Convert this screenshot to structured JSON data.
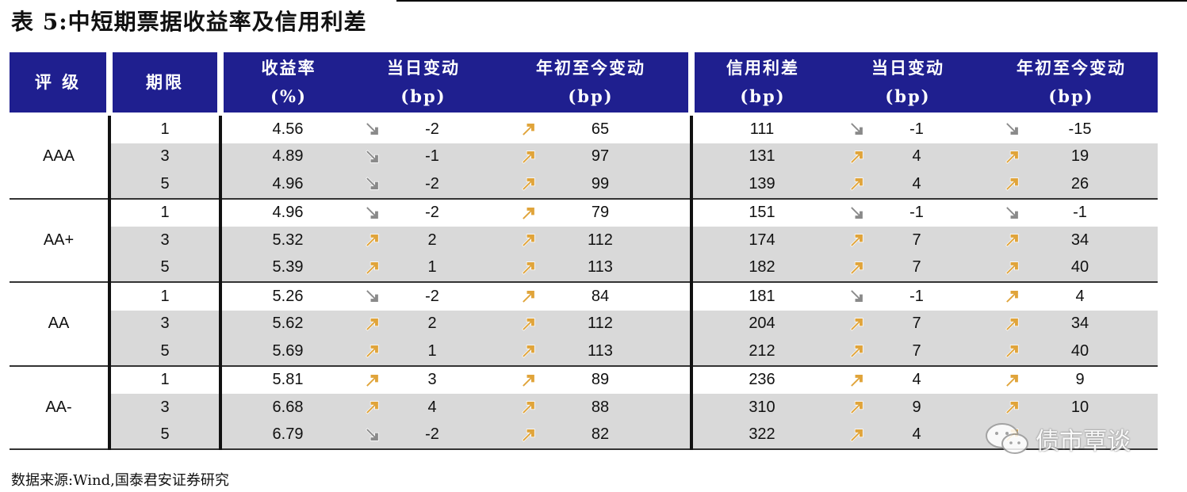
{
  "title": "表 5:中短期票据收益率及信用利差",
  "headers": {
    "rating": "评 级",
    "term": "期限",
    "yield_top": "收益率",
    "yield_bot": "(%)",
    "yield_day_top": "当日变动",
    "yield_day_bot": "(bp)",
    "yield_ytd_top": "年初至今变动",
    "yield_ytd_bot": "(bp)",
    "spread_top": "信用利差",
    "spread_bot": "(bp)",
    "spread_day_top": "当日变动",
    "spread_day_bot": "(bp)",
    "spread_ytd_top": "年初至今变动",
    "spread_ytd_bot": "(bp)"
  },
  "rows": [
    {
      "rating": "AAA",
      "term": "1",
      "yield": "4.56",
      "yday": "-2",
      "yday_dir": "down",
      "yytd": "65",
      "yytd_dir": "up",
      "spread": "111",
      "sday": "-1",
      "sday_dir": "down",
      "sytd": "-15",
      "sytd_dir": "down"
    },
    {
      "rating": "",
      "term": "3",
      "yield": "4.89",
      "yday": "-1",
      "yday_dir": "down",
      "yytd": "97",
      "yytd_dir": "up",
      "spread": "131",
      "sday": "4",
      "sday_dir": "up",
      "sytd": "19",
      "sytd_dir": "up"
    },
    {
      "rating": "",
      "term": "5",
      "yield": "4.96",
      "yday": "-2",
      "yday_dir": "down",
      "yytd": "99",
      "yytd_dir": "up",
      "spread": "139",
      "sday": "4",
      "sday_dir": "up",
      "sytd": "26",
      "sytd_dir": "up"
    },
    {
      "rating": "AA+",
      "term": "1",
      "yield": "4.96",
      "yday": "-2",
      "yday_dir": "down",
      "yytd": "79",
      "yytd_dir": "up",
      "spread": "151",
      "sday": "-1",
      "sday_dir": "down",
      "sytd": "-1",
      "sytd_dir": "down"
    },
    {
      "rating": "",
      "term": "3",
      "yield": "5.32",
      "yday": "2",
      "yday_dir": "up",
      "yytd": "112",
      "yytd_dir": "up",
      "spread": "174",
      "sday": "7",
      "sday_dir": "up",
      "sytd": "34",
      "sytd_dir": "up"
    },
    {
      "rating": "",
      "term": "5",
      "yield": "5.39",
      "yday": "1",
      "yday_dir": "up",
      "yytd": "113",
      "yytd_dir": "up",
      "spread": "182",
      "sday": "7",
      "sday_dir": "up",
      "sytd": "40",
      "sytd_dir": "up"
    },
    {
      "rating": "AA",
      "term": "1",
      "yield": "5.26",
      "yday": "-2",
      "yday_dir": "down",
      "yytd": "84",
      "yytd_dir": "up",
      "spread": "181",
      "sday": "-1",
      "sday_dir": "down",
      "sytd": "4",
      "sytd_dir": "up"
    },
    {
      "rating": "",
      "term": "3",
      "yield": "5.62",
      "yday": "2",
      "yday_dir": "up",
      "yytd": "112",
      "yytd_dir": "up",
      "spread": "204",
      "sday": "7",
      "sday_dir": "up",
      "sytd": "34",
      "sytd_dir": "up"
    },
    {
      "rating": "",
      "term": "5",
      "yield": "5.69",
      "yday": "1",
      "yday_dir": "up",
      "yytd": "113",
      "yytd_dir": "up",
      "spread": "212",
      "sday": "7",
      "sday_dir": "up",
      "sytd": "40",
      "sytd_dir": "up"
    },
    {
      "rating": "AA-",
      "term": "1",
      "yield": "5.81",
      "yday": "3",
      "yday_dir": "up",
      "yytd": "89",
      "yytd_dir": "up",
      "spread": "236",
      "sday": "4",
      "sday_dir": "up",
      "sytd": "9",
      "sytd_dir": "up"
    },
    {
      "rating": "",
      "term": "3",
      "yield": "6.68",
      "yday": "4",
      "yday_dir": "up",
      "yytd": "88",
      "yytd_dir": "up",
      "spread": "310",
      "sday": "9",
      "sday_dir": "up",
      "sytd": "10",
      "sytd_dir": "up"
    },
    {
      "rating": "",
      "term": "5",
      "yield": "6.79",
      "yday": "-2",
      "yday_dir": "down",
      "yytd": "82",
      "yytd_dir": "up",
      "spread": "322",
      "sday": "4",
      "sday_dir": "up",
      "sytd": "",
      "sytd_dir": "up"
    }
  ],
  "source": "数据来源:Wind,国泰君安证券研究",
  "watermark": "债市覃谈",
  "colors": {
    "header_bg": "#1f1f8f",
    "up_arrow": "#e0a43a",
    "down_arrow": "#8a8a8a",
    "shade": "#d9d9d9"
  }
}
